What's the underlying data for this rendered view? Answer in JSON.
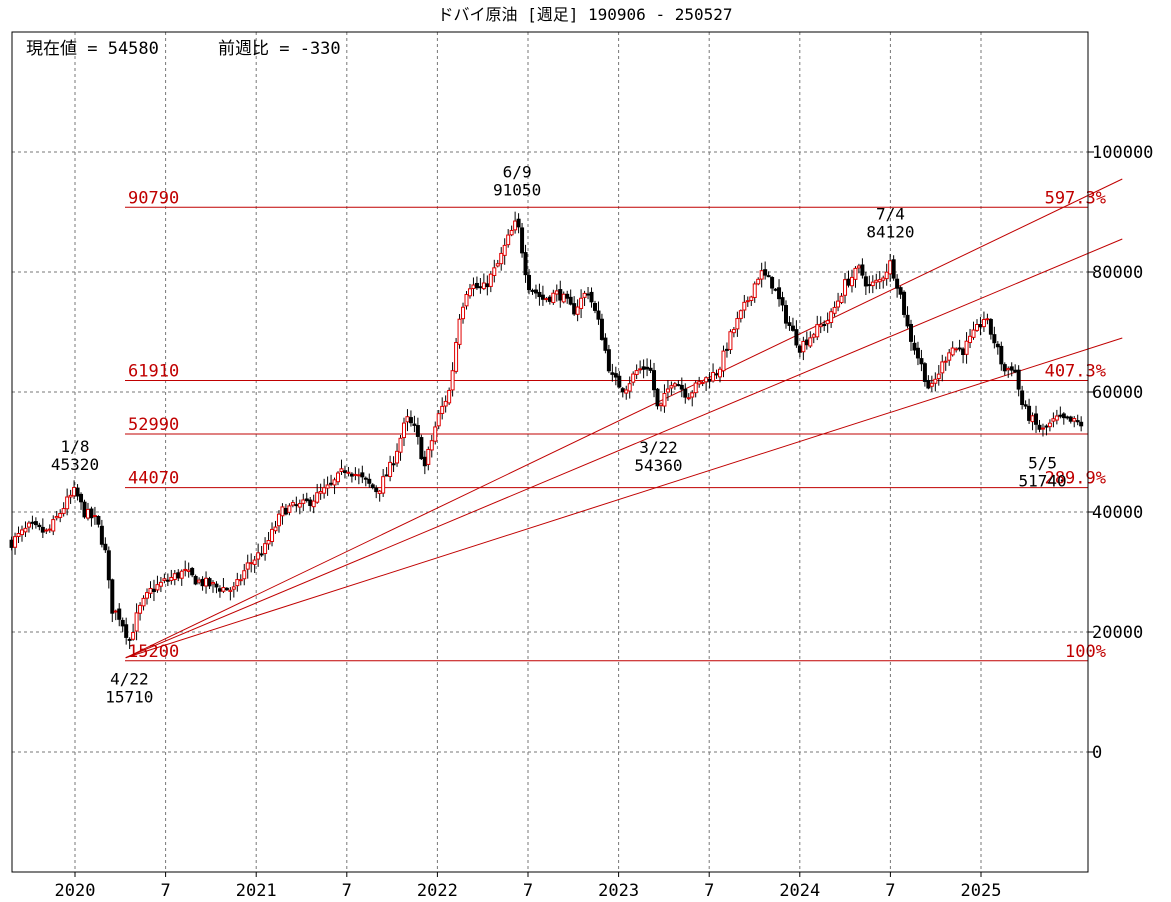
{
  "chart_data": {
    "type": "candlestick",
    "title": "ドバイ原油 [週足] 190906 - 250527",
    "info": {
      "current_label": "現在値 = 54580",
      "change_label": "前週比 = -330",
      "current": 54580,
      "change": -330
    },
    "x_range": [
      2019.65,
      2025.57
    ],
    "y_range": [
      -20000,
      120000
    ],
    "y_ticks": [
      {
        "value": 100000,
        "label": "100000"
      },
      {
        "value": 80000,
        "label": "80000"
      },
      {
        "value": 60000,
        "label": "60000"
      },
      {
        "value": 40000,
        "label": "40000"
      },
      {
        "value": 20000,
        "label": "20000"
      },
      {
        "value": 0,
        "label": "0"
      }
    ],
    "x_ticks": [
      {
        "t": 2020.0,
        "label": "2020"
      },
      {
        "t": 2020.5,
        "label": "7"
      },
      {
        "t": 2021.0,
        "label": "2021"
      },
      {
        "t": 2021.5,
        "label": "7"
      },
      {
        "t": 2022.0,
        "label": "2022"
      },
      {
        "t": 2022.5,
        "label": "7"
      },
      {
        "t": 2023.0,
        "label": "2023"
      },
      {
        "t": 2023.5,
        "label": "7"
      },
      {
        "t": 2024.0,
        "label": "2024"
      },
      {
        "t": 2024.5,
        "label": "7"
      },
      {
        "t": 2025.0,
        "label": "2025"
      }
    ],
    "horizontal_levels": [
      {
        "value": 90790,
        "label": "90790",
        "pct": "597.3%"
      },
      {
        "value": 61910,
        "label": "61910",
        "pct": "407.3%"
      },
      {
        "value": 52990,
        "label": "52990",
        "pct": ""
      },
      {
        "value": 44070,
        "label": "44070",
        "pct": "289.9%"
      },
      {
        "value": 15200,
        "label": "15200",
        "pct": "100%"
      }
    ],
    "trendlines": [
      {
        "from": [
          2020.28,
          15710
        ],
        "to": [
          2025.57,
          95500
        ]
      },
      {
        "from": [
          2020.28,
          15710
        ],
        "to": [
          2025.57,
          85500
        ]
      },
      {
        "from": [
          2020.28,
          15710
        ],
        "to": [
          2025.57,
          69000
        ]
      }
    ],
    "annotations": [
      {
        "date": "1/8",
        "value": "45320",
        "t": 2020.0,
        "v": 45320,
        "pos": "above"
      },
      {
        "date": "4/22",
        "value": "15710",
        "t": 2020.3,
        "v": 15710,
        "pos": "below"
      },
      {
        "date": "6/9",
        "value": "91050",
        "t": 2022.44,
        "v": 91050,
        "pos": "above"
      },
      {
        "date": "3/22",
        "value": "54360",
        "t": 2023.22,
        "v": 54360,
        "pos": "below"
      },
      {
        "date": "7/4",
        "value": "84120",
        "t": 2024.5,
        "v": 84120,
        "pos": "above"
      },
      {
        "date": "5/5",
        "value": "51740",
        "t": 2025.34,
        "v": 51740,
        "pos": "below"
      }
    ],
    "price_path": [
      [
        2019.65,
        35000
      ],
      [
        2019.75,
        37500
      ],
      [
        2019.85,
        36500
      ],
      [
        2019.95,
        41500
      ],
      [
        2020.0,
        43500
      ],
      [
        2020.05,
        40000
      ],
      [
        2020.12,
        38500
      ],
      [
        2020.17,
        33000
      ],
      [
        2020.2,
        24000
      ],
      [
        2020.25,
        22500
      ],
      [
        2020.3,
        18500
      ],
      [
        2020.35,
        23500
      ],
      [
        2020.42,
        27000
      ],
      [
        2020.5,
        28500
      ],
      [
        2020.6,
        30000
      ],
      [
        2020.68,
        28500
      ],
      [
        2020.78,
        27500
      ],
      [
        2020.88,
        27000
      ],
      [
        2020.95,
        31000
      ],
      [
        2021.05,
        34000
      ],
      [
        2021.15,
        40500
      ],
      [
        2021.25,
        41000
      ],
      [
        2021.33,
        42500
      ],
      [
        2021.42,
        44500
      ],
      [
        2021.5,
        47500
      ],
      [
        2021.58,
        45500
      ],
      [
        2021.67,
        43500
      ],
      [
        2021.75,
        48000
      ],
      [
        2021.83,
        55500
      ],
      [
        2021.88,
        53500
      ],
      [
        2021.93,
        47500
      ],
      [
        2022.0,
        55500
      ],
      [
        2022.07,
        60500
      ],
      [
        2022.12,
        72500
      ],
      [
        2022.17,
        78000
      ],
      [
        2022.25,
        77000
      ],
      [
        2022.33,
        81000
      ],
      [
        2022.39,
        85500
      ],
      [
        2022.44,
        88500
      ],
      [
        2022.5,
        78000
      ],
      [
        2022.58,
        75500
      ],
      [
        2022.67,
        76500
      ],
      [
        2022.75,
        73500
      ],
      [
        2022.83,
        77000
      ],
      [
        2022.9,
        70500
      ],
      [
        2022.96,
        62500
      ],
      [
        2023.03,
        60500
      ],
      [
        2023.1,
        63500
      ],
      [
        2023.17,
        64500
      ],
      [
        2023.22,
        56500
      ],
      [
        2023.3,
        62500
      ],
      [
        2023.38,
        59500
      ],
      [
        2023.45,
        61500
      ],
      [
        2023.55,
        63500
      ],
      [
        2023.62,
        69500
      ],
      [
        2023.7,
        74500
      ],
      [
        2023.78,
        80000
      ],
      [
        2023.85,
        78000
      ],
      [
        2023.92,
        72500
      ],
      [
        2024.0,
        67500
      ],
      [
        2024.08,
        70000
      ],
      [
        2024.17,
        72500
      ],
      [
        2024.25,
        78000
      ],
      [
        2024.33,
        80500
      ],
      [
        2024.38,
        77500
      ],
      [
        2024.44,
        78500
      ],
      [
        2024.5,
        81500
      ],
      [
        2024.55,
        77000
      ],
      [
        2024.6,
        70000
      ],
      [
        2024.67,
        64500
      ],
      [
        2024.72,
        60000
      ],
      [
        2024.77,
        63500
      ],
      [
        2024.83,
        67500
      ],
      [
        2024.9,
        67000
      ],
      [
        2024.96,
        69500
      ],
      [
        2025.02,
        72500
      ],
      [
        2025.08,
        68000
      ],
      [
        2025.13,
        63500
      ],
      [
        2025.18,
        64500
      ],
      [
        2025.23,
        57500
      ],
      [
        2025.3,
        54500
      ],
      [
        2025.34,
        53500
      ],
      [
        2025.42,
        55500
      ],
      [
        2025.5,
        55000
      ],
      [
        2025.57,
        54580
      ]
    ]
  }
}
